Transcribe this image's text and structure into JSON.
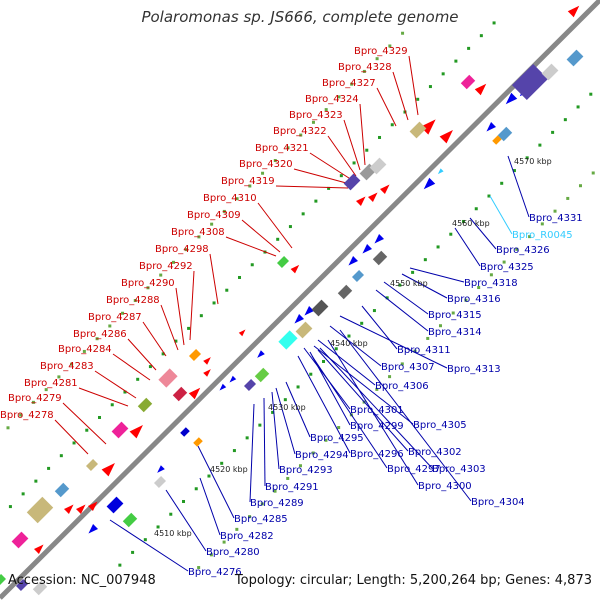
{
  "title": "Polaromonas sp. JS666, complete genome",
  "footer": {
    "accession": "Accession: NC_007948",
    "info": "Topology: circular; Length: 5,200,264 bp; Genes: 4,873"
  },
  "colors": {
    "plus_label": "#cc0000",
    "minus_label": "#0000aa",
    "rna_label": "#33ccff",
    "backbone": "#888888",
    "plus_gene": "#ff0000",
    "minus_gene": "#0000ee"
  },
  "ticks": [
    {
      "label": "4510 kbp"
    },
    {
      "label": "4520 kbp"
    },
    {
      "label": "4530 kbp"
    },
    {
      "label": "4540 kbp"
    },
    {
      "label": "4550 kbp"
    },
    {
      "label": "4560 kbp"
    },
    {
      "label": "4570 kbp"
    }
  ],
  "plus_labels": [
    "Bpro_4329",
    "Bpro_4328",
    "Bpro_4327",
    "Bpro_4324",
    "Bpro_4323",
    "Bpro_4322",
    "Bpro_4321",
    "Bpro_4320",
    "Bpro_4319",
    "Bpro_4310",
    "Bpro_4309",
    "Bpro_4308",
    "Bpro_4298",
    "Bpro_4292",
    "Bpro_4290",
    "Bpro_4288",
    "Bpro_4287",
    "Bpro_4286",
    "Bpro_4284",
    "Bpro_4283",
    "Bpro_4281",
    "Bpro_4279",
    "Bpro_4278"
  ],
  "minus_labels": [
    {
      "text": "Bpro_4331",
      "type": "gene"
    },
    {
      "text": "Bpro_R0045",
      "type": "rna"
    },
    {
      "text": "Bpro_4326",
      "type": "gene"
    },
    {
      "text": "Bpro_4325",
      "type": "gene"
    },
    {
      "text": "Bpro_4318",
      "type": "gene"
    },
    {
      "text": "Bpro_4316",
      "type": "gene"
    },
    {
      "text": "Bpro_4315",
      "type": "gene"
    },
    {
      "text": "Bpro_4314",
      "type": "gene"
    },
    {
      "text": "Bpro_4311",
      "type": "gene"
    },
    {
      "text": "Bpro_4313",
      "type": "gene"
    },
    {
      "text": "Bpro_4307",
      "type": "gene"
    },
    {
      "text": "Bpro_4306",
      "type": "gene"
    },
    {
      "text": "Bpro_4301",
      "type": "gene"
    },
    {
      "text": "Bpro_4299",
      "type": "gene"
    },
    {
      "text": "Bpro_4305",
      "type": "gene"
    },
    {
      "text": "Bpro_4295",
      "type": "gene"
    },
    {
      "text": "Bpro_4302",
      "type": "gene"
    },
    {
      "text": "Bpro_4294",
      "type": "gene"
    },
    {
      "text": "Bpro_4296",
      "type": "gene"
    },
    {
      "text": "Bpro_4293",
      "type": "gene"
    },
    {
      "text": "Bpro_4297",
      "type": "gene"
    },
    {
      "text": "Bpro_4303",
      "type": "gene"
    },
    {
      "text": "Bpro_4300",
      "type": "gene"
    },
    {
      "text": "Bpro_4291",
      "type": "gene"
    },
    {
      "text": "Bpro_4289",
      "type": "gene"
    },
    {
      "text": "Bpro_4304",
      "type": "gene"
    },
    {
      "text": "Bpro_4285",
      "type": "gene"
    },
    {
      "text": "Bpro_4282",
      "type": "gene"
    },
    {
      "text": "Bpro_4280",
      "type": "gene"
    },
    {
      "text": "Bpro_4276",
      "type": "gene"
    }
  ]
}
